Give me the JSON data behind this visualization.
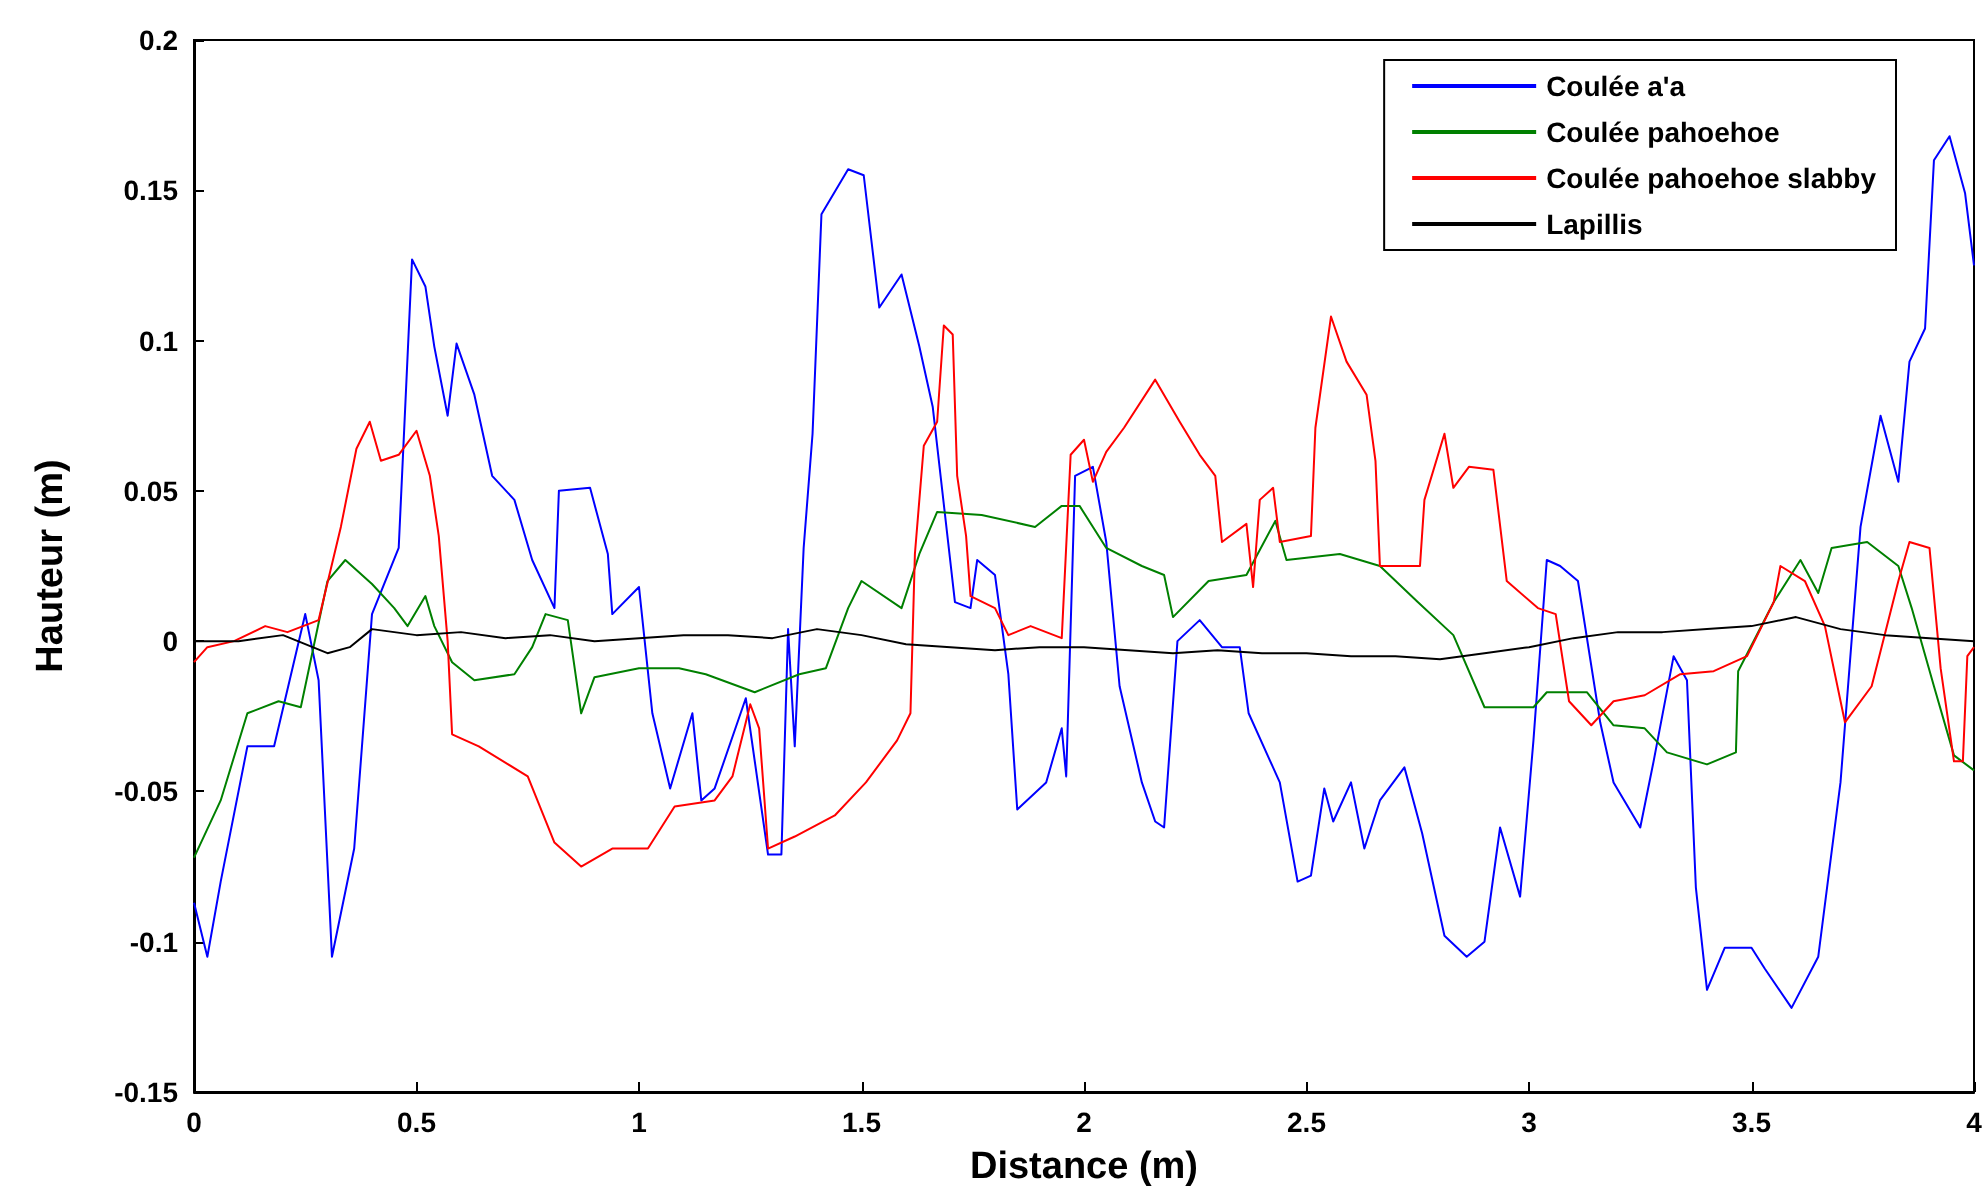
{
  "chart_data": {
    "type": "line",
    "xlabel": "Distance (m)",
    "ylabel": "Hauteur (m)",
    "xlim": [
      0,
      4
    ],
    "ylim": [
      -0.15,
      0.2
    ],
    "xticks": [
      0,
      0.5,
      1,
      1.5,
      2,
      2.5,
      3,
      3.5,
      4
    ],
    "yticks": [
      -0.15,
      -0.1,
      -0.05,
      0,
      0.05,
      0.1,
      0.15,
      0.2
    ],
    "grid": false,
    "legend": "top right",
    "marker": "none",
    "line_style": "solid",
    "series": [
      {
        "name": "Coulée a'a",
        "color": "#0000ff",
        "x": [
          0,
          0.03,
          0.06,
          0.12,
          0.18,
          0.25,
          0.28,
          0.31,
          0.36,
          0.4,
          0.46,
          0.49,
          0.52,
          0.54,
          0.57,
          0.59,
          0.63,
          0.67,
          0.72,
          0.76,
          0.81,
          0.82,
          0.89,
          0.93,
          0.94,
          1.0,
          1.03,
          1.07,
          1.12,
          1.14,
          1.17,
          1.24,
          1.29,
          1.32,
          1.335,
          1.35,
          1.37,
          1.39,
          1.41,
          1.47,
          1.505,
          1.54,
          1.59,
          1.63,
          1.66,
          1.71,
          1.745,
          1.76,
          1.8,
          1.83,
          1.85,
          1.915,
          1.95,
          1.96,
          1.98,
          2.02,
          2.05,
          2.08,
          2.13,
          2.16,
          2.18,
          2.21,
          2.26,
          2.31,
          2.35,
          2.37,
          2.44,
          2.48,
          2.51,
          2.54,
          2.56,
          2.6,
          2.63,
          2.665,
          2.72,
          2.76,
          2.81,
          2.86,
          2.9,
          2.935,
          2.98,
          3.01,
          3.04,
          3.07,
          3.11,
          3.16,
          3.19,
          3.25,
          3.28,
          3.325,
          3.355,
          3.375,
          3.4,
          3.44,
          3.5,
          3.53,
          3.59,
          3.65,
          3.7,
          3.745,
          3.79,
          3.83,
          3.855,
          3.89,
          3.91,
          3.945,
          3.98,
          4.0
        ],
        "values": [
          -0.087,
          -0.105,
          -0.08,
          -0.035,
          -0.035,
          0.009,
          -0.013,
          -0.105,
          -0.069,
          0.009,
          0.031,
          0.127,
          0.118,
          0.098,
          0.075,
          0.099,
          0.082,
          0.055,
          0.047,
          0.027,
          0.011,
          0.05,
          0.051,
          0.029,
          0.009,
          0.018,
          -0.024,
          -0.049,
          -0.024,
          -0.053,
          -0.049,
          -0.019,
          -0.071,
          -0.071,
          0.004,
          -0.035,
          0.031,
          0.069,
          0.142,
          0.157,
          0.155,
          0.111,
          0.122,
          0.098,
          0.078,
          0.013,
          0.011,
          0.027,
          0.022,
          -0.011,
          -0.056,
          -0.047,
          -0.029,
          -0.045,
          0.055,
          0.058,
          0.033,
          -0.015,
          -0.047,
          -0.06,
          -0.062,
          0.0,
          0.007,
          -0.002,
          -0.002,
          -0.024,
          -0.047,
          -0.08,
          -0.078,
          -0.049,
          -0.06,
          -0.047,
          -0.069,
          -0.053,
          -0.042,
          -0.064,
          -0.098,
          -0.105,
          -0.1,
          -0.062,
          -0.085,
          -0.033,
          0.027,
          0.025,
          0.02,
          -0.027,
          -0.047,
          -0.062,
          -0.04,
          -0.005,
          -0.013,
          -0.082,
          -0.116,
          -0.102,
          -0.102,
          -0.109,
          -0.122,
          -0.105,
          -0.047,
          0.038,
          0.075,
          0.053,
          0.093,
          0.104,
          0.16,
          0.168,
          0.149,
          0.125
        ]
      },
      {
        "name": "Coulée pahoehoe",
        "color": "#008000",
        "x": [
          0,
          0.06,
          0.12,
          0.19,
          0.24,
          0.3,
          0.34,
          0.4,
          0.45,
          0.48,
          0.52,
          0.54,
          0.58,
          0.63,
          0.72,
          0.76,
          0.79,
          0.84,
          0.87,
          0.9,
          1.0,
          1.09,
          1.15,
          1.26,
          1.36,
          1.42,
          1.47,
          1.5,
          1.59,
          1.63,
          1.67,
          1.77,
          1.89,
          1.95,
          1.99,
          2.05,
          2.13,
          2.18,
          2.2,
          2.28,
          2.365,
          2.43,
          2.455,
          2.575,
          2.665,
          2.75,
          2.83,
          2.9,
          3.01,
          3.04,
          3.13,
          3.19,
          3.26,
          3.31,
          3.4,
          3.465,
          3.47,
          3.55,
          3.61,
          3.65,
          3.68,
          3.76,
          3.83,
          3.86,
          3.91,
          3.955,
          4.0
        ],
        "values": [
          -0.072,
          -0.053,
          -0.024,
          -0.02,
          -0.022,
          0.02,
          0.027,
          0.019,
          0.011,
          0.005,
          0.015,
          0.005,
          -0.007,
          -0.013,
          -0.011,
          -0.002,
          0.009,
          0.007,
          -0.024,
          -0.012,
          -0.009,
          -0.009,
          -0.011,
          -0.017,
          -0.011,
          -0.009,
          0.011,
          0.02,
          0.011,
          0.029,
          0.043,
          0.042,
          0.038,
          0.045,
          0.045,
          0.031,
          0.025,
          0.022,
          0.008,
          0.02,
          0.022,
          0.04,
          0.027,
          0.029,
          0.025,
          0.013,
          0.002,
          -0.022,
          -0.022,
          -0.017,
          -0.017,
          -0.028,
          -0.029,
          -0.037,
          -0.041,
          -0.037,
          -0.01,
          0.013,
          0.027,
          0.016,
          0.031,
          0.033,
          0.025,
          0.011,
          -0.015,
          -0.038,
          -0.043
        ]
      },
      {
        "name": "Coulée pahoehoe slabby",
        "color": "#ff0000",
        "x": [
          0,
          0.03,
          0.09,
          0.16,
          0.21,
          0.28,
          0.33,
          0.365,
          0.395,
          0.42,
          0.46,
          0.5,
          0.53,
          0.55,
          0.57,
          0.58,
          0.64,
          0.75,
          0.81,
          0.87,
          0.94,
          1.02,
          1.08,
          1.17,
          1.21,
          1.25,
          1.27,
          1.29,
          1.35,
          1.44,
          1.51,
          1.58,
          1.61,
          1.62,
          1.64,
          1.67,
          1.685,
          1.705,
          1.715,
          1.735,
          1.745,
          1.8,
          1.83,
          1.88,
          1.95,
          1.97,
          2.0,
          2.02,
          2.05,
          2.09,
          2.16,
          2.215,
          2.26,
          2.295,
          2.31,
          2.365,
          2.38,
          2.395,
          2.425,
          2.44,
          2.51,
          2.52,
          2.555,
          2.59,
          2.635,
          2.655,
          2.665,
          2.74,
          2.755,
          2.765,
          2.81,
          2.83,
          2.865,
          2.92,
          2.95,
          3.02,
          3.06,
          3.09,
          3.14,
          3.19,
          3.26,
          3.34,
          3.415,
          3.49,
          3.55,
          3.565,
          3.62,
          3.665,
          3.71,
          3.77,
          3.83,
          3.855,
          3.9,
          3.925,
          3.955,
          3.975,
          3.985,
          4.0
        ],
        "values": [
          -0.007,
          -0.002,
          0.0,
          0.005,
          0.003,
          0.007,
          0.038,
          0.064,
          0.073,
          0.06,
          0.062,
          0.07,
          0.055,
          0.035,
          0.0,
          -0.031,
          -0.035,
          -0.045,
          -0.067,
          -0.075,
          -0.069,
          -0.069,
          -0.055,
          -0.053,
          -0.045,
          -0.021,
          -0.029,
          -0.069,
          -0.065,
          -0.058,
          -0.047,
          -0.033,
          -0.024,
          0.029,
          0.065,
          0.073,
          0.105,
          0.102,
          0.055,
          0.035,
          0.015,
          0.011,
          0.002,
          0.005,
          0.001,
          0.062,
          0.067,
          0.053,
          0.063,
          0.071,
          0.087,
          0.073,
          0.062,
          0.055,
          0.033,
          0.039,
          0.018,
          0.047,
          0.051,
          0.033,
          0.035,
          0.071,
          0.108,
          0.093,
          0.082,
          0.06,
          0.025,
          0.025,
          0.025,
          0.047,
          0.069,
          0.051,
          0.058,
          0.057,
          0.02,
          0.011,
          0.009,
          -0.02,
          -0.028,
          -0.02,
          -0.018,
          -0.011,
          -0.01,
          -0.005,
          0.013,
          0.025,
          0.02,
          0.005,
          -0.027,
          -0.015,
          0.02,
          0.033,
          0.031,
          -0.009,
          -0.04,
          -0.04,
          -0.005,
          -0.002
        ]
      },
      {
        "name": "Lapillis",
        "color": "#000000",
        "x": [
          0,
          0.1,
          0.2,
          0.25,
          0.3,
          0.35,
          0.4,
          0.5,
          0.6,
          0.7,
          0.8,
          0.9,
          1.0,
          1.1,
          1.2,
          1.3,
          1.4,
          1.5,
          1.6,
          1.7,
          1.8,
          1.9,
          2.0,
          2.1,
          2.2,
          2.3,
          2.4,
          2.5,
          2.6,
          2.7,
          2.8,
          2.9,
          3.0,
          3.1,
          3.2,
          3.3,
          3.4,
          3.5,
          3.6,
          3.7,
          3.8,
          3.9,
          4.0
        ],
        "values": [
          0.0,
          0.0,
          0.002,
          -0.001,
          -0.004,
          -0.002,
          0.004,
          0.002,
          0.003,
          0.001,
          0.002,
          0.0,
          0.001,
          0.002,
          0.002,
          0.001,
          0.004,
          0.002,
          -0.001,
          -0.002,
          -0.003,
          -0.002,
          -0.002,
          -0.003,
          -0.004,
          -0.003,
          -0.004,
          -0.004,
          -0.005,
          -0.005,
          -0.006,
          -0.004,
          -0.002,
          0.001,
          0.003,
          0.003,
          0.004,
          0.005,
          0.008,
          0.004,
          0.002,
          0.001,
          0.0
        ]
      }
    ]
  }
}
